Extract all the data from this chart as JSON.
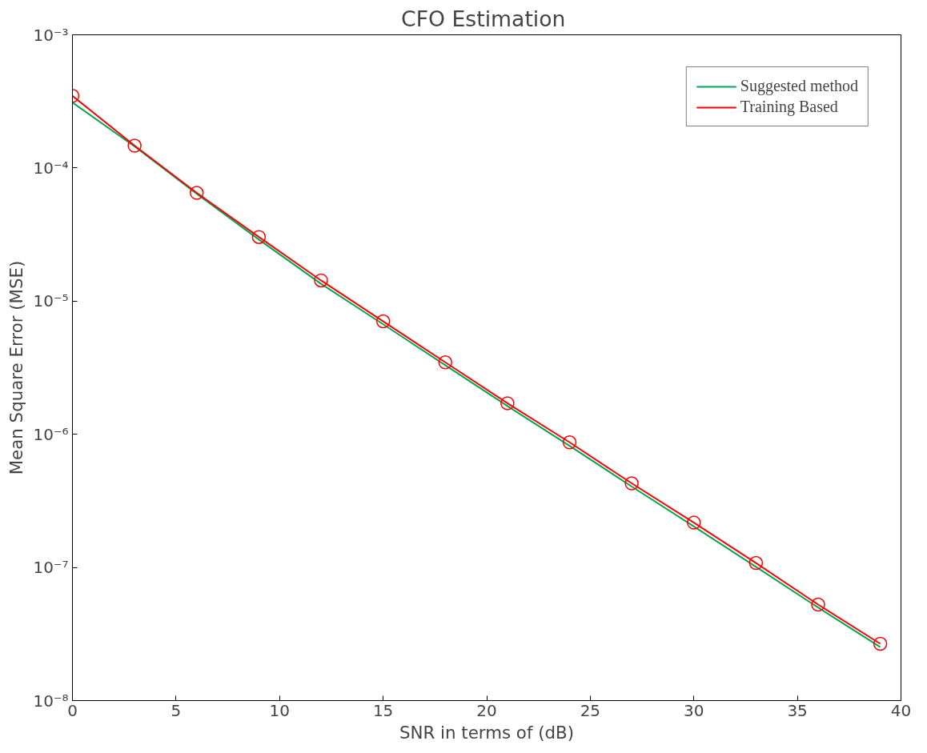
{
  "chart_data": {
    "type": "line",
    "title": "CFO  Estimation",
    "xlabel": "SNR in terms of (dB)",
    "ylabel": "Mean Square Error (MSE)",
    "x": [
      0,
      3,
      6,
      9,
      12,
      15,
      18,
      21,
      24,
      27,
      30,
      33,
      36,
      39
    ],
    "series": [
      {
        "name": "Suggested method",
        "color": "#00a651",
        "marker": "none",
        "values": [
          0.00031,
          0.000145,
          6.4e-05,
          2.9e-05,
          1.35e-05,
          6.7e-06,
          3.3e-06,
          1.63e-06,
          8.2e-07,
          4.05e-07,
          2.03e-07,
          1.01e-07,
          5e-08,
          2.52e-08
        ]
      },
      {
        "name": "Training Based",
        "color": "#ff0000",
        "marker": "circle",
        "values": [
          0.000348,
          0.000147,
          6.5e-05,
          3.03e-05,
          1.43e-05,
          7.05e-06,
          3.47e-06,
          1.71e-06,
          8.7e-07,
          4.28e-07,
          2.17e-07,
          1.08e-07,
          5.26e-08,
          2.67e-08
        ]
      }
    ],
    "log": "y",
    "xlim": [
      0,
      40
    ],
    "xticks": [
      0,
      5,
      10,
      15,
      20,
      25,
      30,
      35,
      40
    ],
    "ylim": [
      1e-08,
      0.001
    ],
    "yticks": [
      {
        "value": 1e-08,
        "label": "10⁻⁸"
      },
      {
        "value": 1e-07,
        "label": "10⁻⁷"
      },
      {
        "value": 1e-06,
        "label": "10⁻⁶"
      },
      {
        "value": 1e-05,
        "label": "10⁻⁵"
      },
      {
        "value": 0.0001,
        "label": "10⁻⁴"
      },
      {
        "value": 0.001,
        "label": "10⁻³"
      }
    ],
    "grid": false,
    "legend": "top right",
    "line_style": "solid"
  }
}
